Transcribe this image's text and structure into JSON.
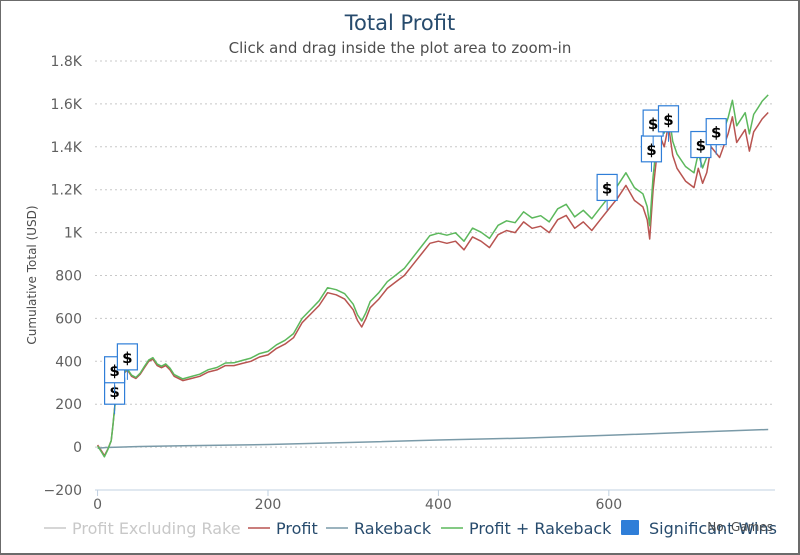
{
  "chart_data": {
    "type": "line",
    "title": "Total Profit",
    "subtitle": "Click and drag inside the plot area to zoom-in",
    "ylabel": "Cumulative Total (USD)",
    "xlabel": "No. Games",
    "xlim": [
      -3,
      795
    ],
    "ylim": [
      -200,
      1800
    ],
    "x_ticks": [
      {
        "v": 0,
        "label": "0"
      },
      {
        "v": 200,
        "label": "200"
      },
      {
        "v": 400,
        "label": "400"
      },
      {
        "v": 600,
        "label": "600"
      }
    ],
    "y_ticks": [
      {
        "v": -200,
        "label": "−200"
      },
      {
        "v": 0,
        "label": "0"
      },
      {
        "v": 200,
        "label": "200"
      },
      {
        "v": 400,
        "label": "400"
      },
      {
        "v": 600,
        "label": "600"
      },
      {
        "v": 800,
        "label": "800"
      },
      {
        "v": 1000,
        "label": "1K"
      },
      {
        "v": 1200,
        "label": "1.2K"
      },
      {
        "v": 1400,
        "label": "1.4K"
      },
      {
        "v": 1600,
        "label": "1.6K"
      },
      {
        "v": 1800,
        "label": "1.8K"
      }
    ],
    "grid": true,
    "legend_position": "bottom",
    "series": [
      {
        "name": "Profit Excluding Rake",
        "color": "#c8c8c8",
        "visible": false
      },
      {
        "name": "Profit",
        "color": "#b85450",
        "points": [
          [
            0,
            10
          ],
          [
            5,
            -20
          ],
          [
            8,
            -40
          ],
          [
            12,
            -10
          ],
          [
            16,
            30
          ],
          [
            18,
            100
          ],
          [
            22,
            260
          ],
          [
            26,
            300
          ],
          [
            30,
            340
          ],
          [
            35,
            360
          ],
          [
            40,
            330
          ],
          [
            45,
            320
          ],
          [
            50,
            340
          ],
          [
            55,
            370
          ],
          [
            60,
            400
          ],
          [
            65,
            410
          ],
          [
            70,
            380
          ],
          [
            75,
            370
          ],
          [
            80,
            380
          ],
          [
            85,
            360
          ],
          [
            90,
            330
          ],
          [
            100,
            310
          ],
          [
            110,
            320
          ],
          [
            120,
            330
          ],
          [
            130,
            350
          ],
          [
            140,
            360
          ],
          [
            150,
            380
          ],
          [
            160,
            380
          ],
          [
            170,
            390
          ],
          [
            180,
            400
          ],
          [
            190,
            420
          ],
          [
            200,
            430
          ],
          [
            210,
            460
          ],
          [
            220,
            480
          ],
          [
            230,
            510
          ],
          [
            240,
            580
          ],
          [
            250,
            620
          ],
          [
            260,
            660
          ],
          [
            270,
            720
          ],
          [
            280,
            710
          ],
          [
            290,
            690
          ],
          [
            300,
            640
          ],
          [
            305,
            590
          ],
          [
            310,
            560
          ],
          [
            315,
            600
          ],
          [
            320,
            650
          ],
          [
            330,
            690
          ],
          [
            340,
            740
          ],
          [
            350,
            770
          ],
          [
            360,
            800
          ],
          [
            370,
            850
          ],
          [
            380,
            900
          ],
          [
            390,
            950
          ],
          [
            400,
            960
          ],
          [
            410,
            950
          ],
          [
            420,
            960
          ],
          [
            430,
            920
          ],
          [
            440,
            980
          ],
          [
            450,
            960
          ],
          [
            460,
            930
          ],
          [
            470,
            990
          ],
          [
            480,
            1010
          ],
          [
            490,
            1000
          ],
          [
            500,
            1050
          ],
          [
            510,
            1020
          ],
          [
            520,
            1030
          ],
          [
            530,
            1000
          ],
          [
            540,
            1060
          ],
          [
            550,
            1080
          ],
          [
            560,
            1020
          ],
          [
            570,
            1050
          ],
          [
            580,
            1010
          ],
          [
            590,
            1060
          ],
          [
            600,
            1110
          ],
          [
            610,
            1160
          ],
          [
            620,
            1220
          ],
          [
            630,
            1150
          ],
          [
            640,
            1120
          ],
          [
            645,
            1060
          ],
          [
            648,
            970
          ],
          [
            652,
            1200
          ],
          [
            656,
            1350
          ],
          [
            660,
            1450
          ],
          [
            665,
            1400
          ],
          [
            670,
            1500
          ],
          [
            675,
            1360
          ],
          [
            680,
            1300
          ],
          [
            690,
            1240
          ],
          [
            700,
            1210
          ],
          [
            705,
            1300
          ],
          [
            710,
            1230
          ],
          [
            715,
            1280
          ],
          [
            720,
            1400
          ],
          [
            730,
            1350
          ],
          [
            740,
            1460
          ],
          [
            745,
            1540
          ],
          [
            750,
            1420
          ],
          [
            760,
            1480
          ],
          [
            765,
            1380
          ],
          [
            770,
            1470
          ],
          [
            775,
            1500
          ],
          [
            780,
            1530
          ],
          [
            787,
            1560
          ]
        ]
      },
      {
        "name": "Rakeback",
        "color": "#7a9aa8",
        "points": [
          [
            0,
            -5
          ],
          [
            10,
            -2
          ],
          [
            50,
            3
          ],
          [
            100,
            6
          ],
          [
            200,
            12
          ],
          [
            300,
            22
          ],
          [
            400,
            33
          ],
          [
            500,
            42
          ],
          [
            600,
            55
          ],
          [
            700,
            70
          ],
          [
            787,
            82
          ]
        ]
      },
      {
        "name": "Profit + Rakeback",
        "color": "#5cb85c",
        "points": [
          [
            0,
            5
          ],
          [
            5,
            -25
          ],
          [
            8,
            -45
          ],
          [
            12,
            -12
          ],
          [
            16,
            30
          ],
          [
            18,
            100
          ],
          [
            22,
            262
          ],
          [
            26,
            302
          ],
          [
            30,
            343
          ],
          [
            35,
            364
          ],
          [
            40,
            335
          ],
          [
            45,
            325
          ],
          [
            50,
            345
          ],
          [
            55,
            376
          ],
          [
            60,
            406
          ],
          [
            65,
            417
          ],
          [
            70,
            387
          ],
          [
            75,
            377
          ],
          [
            80,
            388
          ],
          [
            85,
            368
          ],
          [
            90,
            338
          ],
          [
            100,
            318
          ],
          [
            110,
            329
          ],
          [
            120,
            340
          ],
          [
            130,
            361
          ],
          [
            140,
            371
          ],
          [
            150,
            392
          ],
          [
            160,
            393
          ],
          [
            170,
            404
          ],
          [
            180,
            415
          ],
          [
            190,
            436
          ],
          [
            200,
            446
          ],
          [
            210,
            477
          ],
          [
            220,
            498
          ],
          [
            230,
            529
          ],
          [
            240,
            600
          ],
          [
            250,
            641
          ],
          [
            260,
            682
          ],
          [
            270,
            743
          ],
          [
            280,
            734
          ],
          [
            290,
            715
          ],
          [
            300,
            666
          ],
          [
            305,
            617
          ],
          [
            310,
            588
          ],
          [
            315,
            628
          ],
          [
            320,
            679
          ],
          [
            330,
            720
          ],
          [
            340,
            771
          ],
          [
            350,
            802
          ],
          [
            360,
            833
          ],
          [
            370,
            884
          ],
          [
            380,
            935
          ],
          [
            390,
            986
          ],
          [
            400,
            997
          ],
          [
            410,
            988
          ],
          [
            420,
            999
          ],
          [
            430,
            960
          ],
          [
            440,
            1021
          ],
          [
            450,
            1002
          ],
          [
            460,
            973
          ],
          [
            470,
            1034
          ],
          [
            480,
            1055
          ],
          [
            490,
            1046
          ],
          [
            500,
            1097
          ],
          [
            510,
            1068
          ],
          [
            520,
            1079
          ],
          [
            530,
            1050
          ],
          [
            540,
            1111
          ],
          [
            550,
            1132
          ],
          [
            560,
            1073
          ],
          [
            570,
            1104
          ],
          [
            580,
            1065
          ],
          [
            590,
            1116
          ],
          [
            600,
            1166
          ],
          [
            610,
            1218
          ],
          [
            620,
            1279
          ],
          [
            630,
            1210
          ],
          [
            640,
            1181
          ],
          [
            645,
            1121
          ],
          [
            648,
            1032
          ],
          [
            652,
            1262
          ],
          [
            656,
            1413
          ],
          [
            660,
            1513
          ],
          [
            665,
            1464
          ],
          [
            670,
            1565
          ],
          [
            675,
            1426
          ],
          [
            680,
            1367
          ],
          [
            690,
            1308
          ],
          [
            700,
            1279
          ],
          [
            705,
            1370
          ],
          [
            710,
            1301
          ],
          [
            715,
            1352
          ],
          [
            720,
            1473
          ],
          [
            730,
            1424
          ],
          [
            740,
            1535
          ],
          [
            745,
            1617
          ],
          [
            750,
            1498
          ],
          [
            760,
            1559
          ],
          [
            765,
            1460
          ],
          [
            770,
            1551
          ],
          [
            775,
            1582
          ],
          [
            780,
            1613
          ],
          [
            787,
            1642
          ]
        ]
      }
    ],
    "significant_wins": {
      "name": "Significant Wins",
      "color": "#2f7ed8",
      "flag_text": "$",
      "flags": [
        {
          "x": 20,
          "y": 200
        },
        {
          "x": 20,
          "y": 300
        },
        {
          "x": 35,
          "y": 360
        },
        {
          "x": 598,
          "y": 1150
        },
        {
          "x": 650,
          "y": 1330
        },
        {
          "x": 652,
          "y": 1450
        },
        {
          "x": 670,
          "y": 1470
        },
        {
          "x": 708,
          "y": 1350
        },
        {
          "x": 726,
          "y": 1410
        }
      ]
    }
  }
}
